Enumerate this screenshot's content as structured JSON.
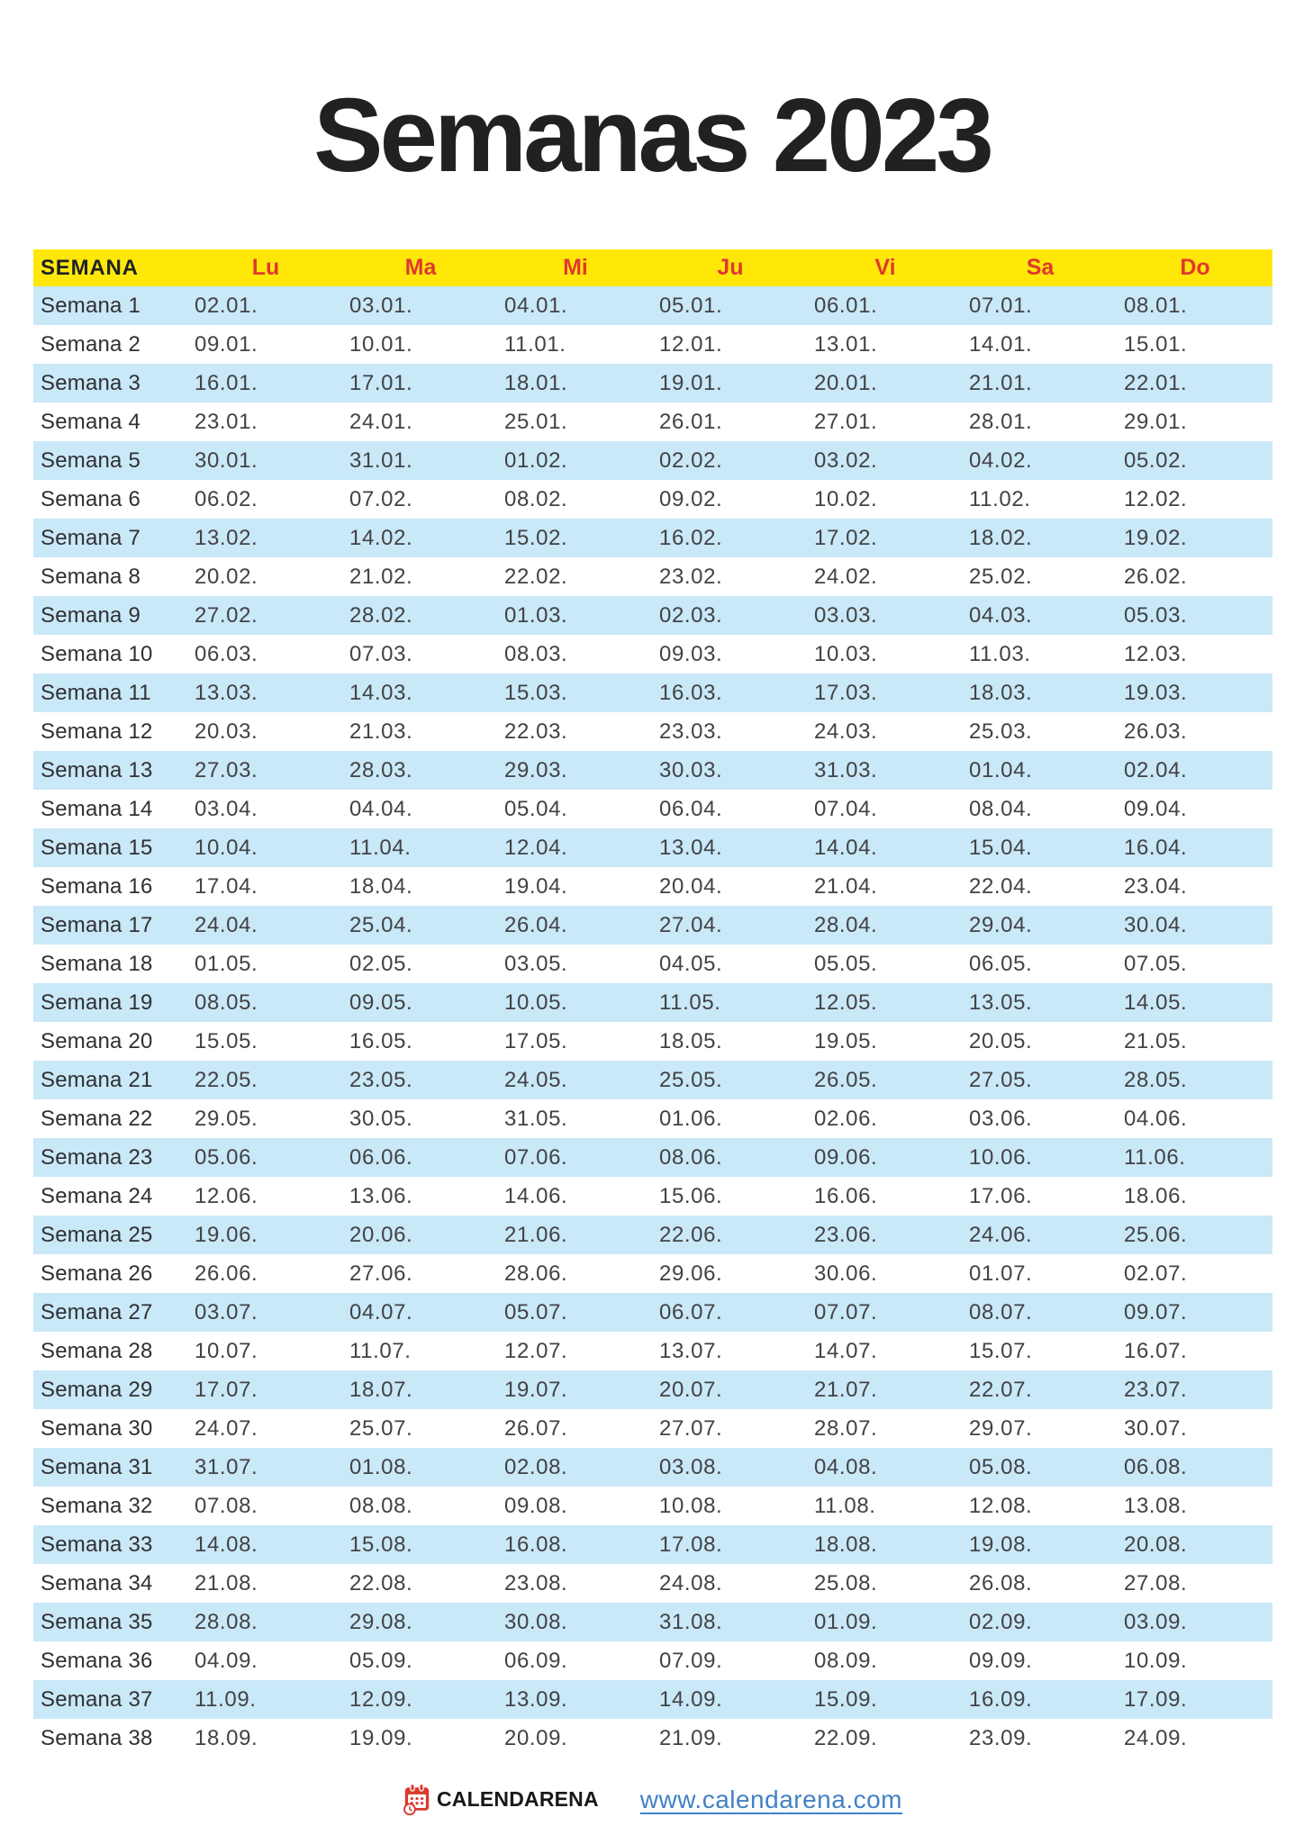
{
  "page": {
    "title": "Semanas 2023"
  },
  "table": {
    "header": {
      "week_label": "SEMANA",
      "days": [
        "Lu",
        "Ma",
        "Mi",
        "Ju",
        "Vi",
        "Sa",
        "Do"
      ]
    },
    "rows": [
      {
        "label": "Semana 1",
        "dates": [
          "02.01.",
          "03.01.",
          "04.01.",
          "05.01.",
          "06.01.",
          "07.01.",
          "08.01."
        ]
      },
      {
        "label": "Semana 2",
        "dates": [
          "09.01.",
          "10.01.",
          "11.01.",
          "12.01.",
          "13.01.",
          "14.01.",
          "15.01."
        ]
      },
      {
        "label": "Semana 3",
        "dates": [
          "16.01.",
          "17.01.",
          "18.01.",
          "19.01.",
          "20.01.",
          "21.01.",
          "22.01."
        ]
      },
      {
        "label": "Semana 4",
        "dates": [
          "23.01.",
          "24.01.",
          "25.01.",
          "26.01.",
          "27.01.",
          "28.01.",
          "29.01."
        ]
      },
      {
        "label": "Semana 5",
        "dates": [
          "30.01.",
          "31.01.",
          "01.02.",
          "02.02.",
          "03.02.",
          "04.02.",
          "05.02."
        ]
      },
      {
        "label": "Semana 6",
        "dates": [
          "06.02.",
          "07.02.",
          "08.02.",
          "09.02.",
          "10.02.",
          "11.02.",
          "12.02."
        ]
      },
      {
        "label": "Semana 7",
        "dates": [
          "13.02.",
          "14.02.",
          "15.02.",
          "16.02.",
          "17.02.",
          "18.02.",
          "19.02."
        ]
      },
      {
        "label": "Semana 8",
        "dates": [
          "20.02.",
          "21.02.",
          "22.02.",
          "23.02.",
          "24.02.",
          "25.02.",
          "26.02."
        ]
      },
      {
        "label": "Semana 9",
        "dates": [
          "27.02.",
          "28.02.",
          "01.03.",
          "02.03.",
          "03.03.",
          "04.03.",
          "05.03."
        ]
      },
      {
        "label": "Semana 10",
        "dates": [
          "06.03.",
          "07.03.",
          "08.03.",
          "09.03.",
          "10.03.",
          "11.03.",
          "12.03."
        ]
      },
      {
        "label": "Semana 11",
        "dates": [
          "13.03.",
          "14.03.",
          "15.03.",
          "16.03.",
          "17.03.",
          "18.03.",
          "19.03."
        ]
      },
      {
        "label": "Semana 12",
        "dates": [
          "20.03.",
          "21.03.",
          "22.03.",
          "23.03.",
          "24.03.",
          "25.03.",
          "26.03."
        ]
      },
      {
        "label": "Semana 13",
        "dates": [
          "27.03.",
          "28.03.",
          "29.03.",
          "30.03.",
          "31.03.",
          "01.04.",
          "02.04."
        ]
      },
      {
        "label": "Semana 14",
        "dates": [
          "03.04.",
          "04.04.",
          "05.04.",
          "06.04.",
          "07.04.",
          "08.04.",
          "09.04."
        ]
      },
      {
        "label": "Semana 15",
        "dates": [
          "10.04.",
          "11.04.",
          "12.04.",
          "13.04.",
          "14.04.",
          "15.04.",
          "16.04."
        ]
      },
      {
        "label": "Semana 16",
        "dates": [
          "17.04.",
          "18.04.",
          "19.04.",
          "20.04.",
          "21.04.",
          "22.04.",
          "23.04."
        ]
      },
      {
        "label": "Semana 17",
        "dates": [
          "24.04.",
          "25.04.",
          "26.04.",
          "27.04.",
          "28.04.",
          "29.04.",
          "30.04."
        ]
      },
      {
        "label": "Semana 18",
        "dates": [
          "01.05.",
          "02.05.",
          "03.05.",
          "04.05.",
          "05.05.",
          "06.05.",
          "07.05."
        ]
      },
      {
        "label": "Semana 19",
        "dates": [
          "08.05.",
          "09.05.",
          "10.05.",
          "11.05.",
          "12.05.",
          "13.05.",
          "14.05."
        ]
      },
      {
        "label": "Semana 20",
        "dates": [
          "15.05.",
          "16.05.",
          "17.05.",
          "18.05.",
          "19.05.",
          "20.05.",
          "21.05."
        ]
      },
      {
        "label": "Semana 21",
        "dates": [
          "22.05.",
          "23.05.",
          "24.05.",
          "25.05.",
          "26.05.",
          "27.05.",
          "28.05."
        ]
      },
      {
        "label": "Semana 22",
        "dates": [
          "29.05.",
          "30.05.",
          "31.05.",
          "01.06.",
          "02.06.",
          "03.06.",
          "04.06."
        ]
      },
      {
        "label": "Semana 23",
        "dates": [
          "05.06.",
          "06.06.",
          "07.06.",
          "08.06.",
          "09.06.",
          "10.06.",
          "11.06."
        ]
      },
      {
        "label": "Semana 24",
        "dates": [
          "12.06.",
          "13.06.",
          "14.06.",
          "15.06.",
          "16.06.",
          "17.06.",
          "18.06."
        ]
      },
      {
        "label": "Semana 25",
        "dates": [
          "19.06.",
          "20.06.",
          "21.06.",
          "22.06.",
          "23.06.",
          "24.06.",
          "25.06."
        ]
      },
      {
        "label": "Semana 26",
        "dates": [
          "26.06.",
          "27.06.",
          "28.06.",
          "29.06.",
          "30.06.",
          "01.07.",
          "02.07."
        ]
      },
      {
        "label": "Semana 27",
        "dates": [
          "03.07.",
          "04.07.",
          "05.07.",
          "06.07.",
          "07.07.",
          "08.07.",
          "09.07."
        ]
      },
      {
        "label": "Semana 28",
        "dates": [
          "10.07.",
          "11.07.",
          "12.07.",
          "13.07.",
          "14.07.",
          "15.07.",
          "16.07."
        ]
      },
      {
        "label": "Semana 29",
        "dates": [
          "17.07.",
          "18.07.",
          "19.07.",
          "20.07.",
          "21.07.",
          "22.07.",
          "23.07."
        ]
      },
      {
        "label": "Semana 30",
        "dates": [
          "24.07.",
          "25.07.",
          "26.07.",
          "27.07.",
          "28.07.",
          "29.07.",
          "30.07."
        ]
      },
      {
        "label": "Semana 31",
        "dates": [
          "31.07.",
          "01.08.",
          "02.08.",
          "03.08.",
          "04.08.",
          "05.08.",
          "06.08."
        ]
      },
      {
        "label": "Semana 32",
        "dates": [
          "07.08.",
          "08.08.",
          "09.08.",
          "10.08.",
          "11.08.",
          "12.08.",
          "13.08."
        ]
      },
      {
        "label": "Semana 33",
        "dates": [
          "14.08.",
          "15.08.",
          "16.08.",
          "17.08.",
          "18.08.",
          "19.08.",
          "20.08."
        ]
      },
      {
        "label": "Semana 34",
        "dates": [
          "21.08.",
          "22.08.",
          "23.08.",
          "24.08.",
          "25.08.",
          "26.08.",
          "27.08."
        ]
      },
      {
        "label": "Semana 35",
        "dates": [
          "28.08.",
          "29.08.",
          "30.08.",
          "31.08.",
          "01.09.",
          "02.09.",
          "03.09."
        ]
      },
      {
        "label": "Semana 36",
        "dates": [
          "04.09.",
          "05.09.",
          "06.09.",
          "07.09.",
          "08.09.",
          "09.09.",
          "10.09."
        ]
      },
      {
        "label": "Semana 37",
        "dates": [
          "11.09.",
          "12.09.",
          "13.09.",
          "14.09.",
          "15.09.",
          "16.09.",
          "17.09."
        ]
      },
      {
        "label": "Semana 38",
        "dates": [
          "18.09.",
          "19.09.",
          "20.09.",
          "21.09.",
          "22.09.",
          "23.09.",
          "24.09."
        ]
      }
    ]
  },
  "footer": {
    "brand": "CALENDARENA",
    "link": "www.calendarena.com"
  },
  "colors": {
    "header_bg": "#ffe808",
    "day_text": "#e0392f",
    "row_alt_bg": "#c9e8f8",
    "title_text": "#232024",
    "date_text": "#424245",
    "link_color": "#4281c4",
    "brand_red": "#d93a2f"
  }
}
